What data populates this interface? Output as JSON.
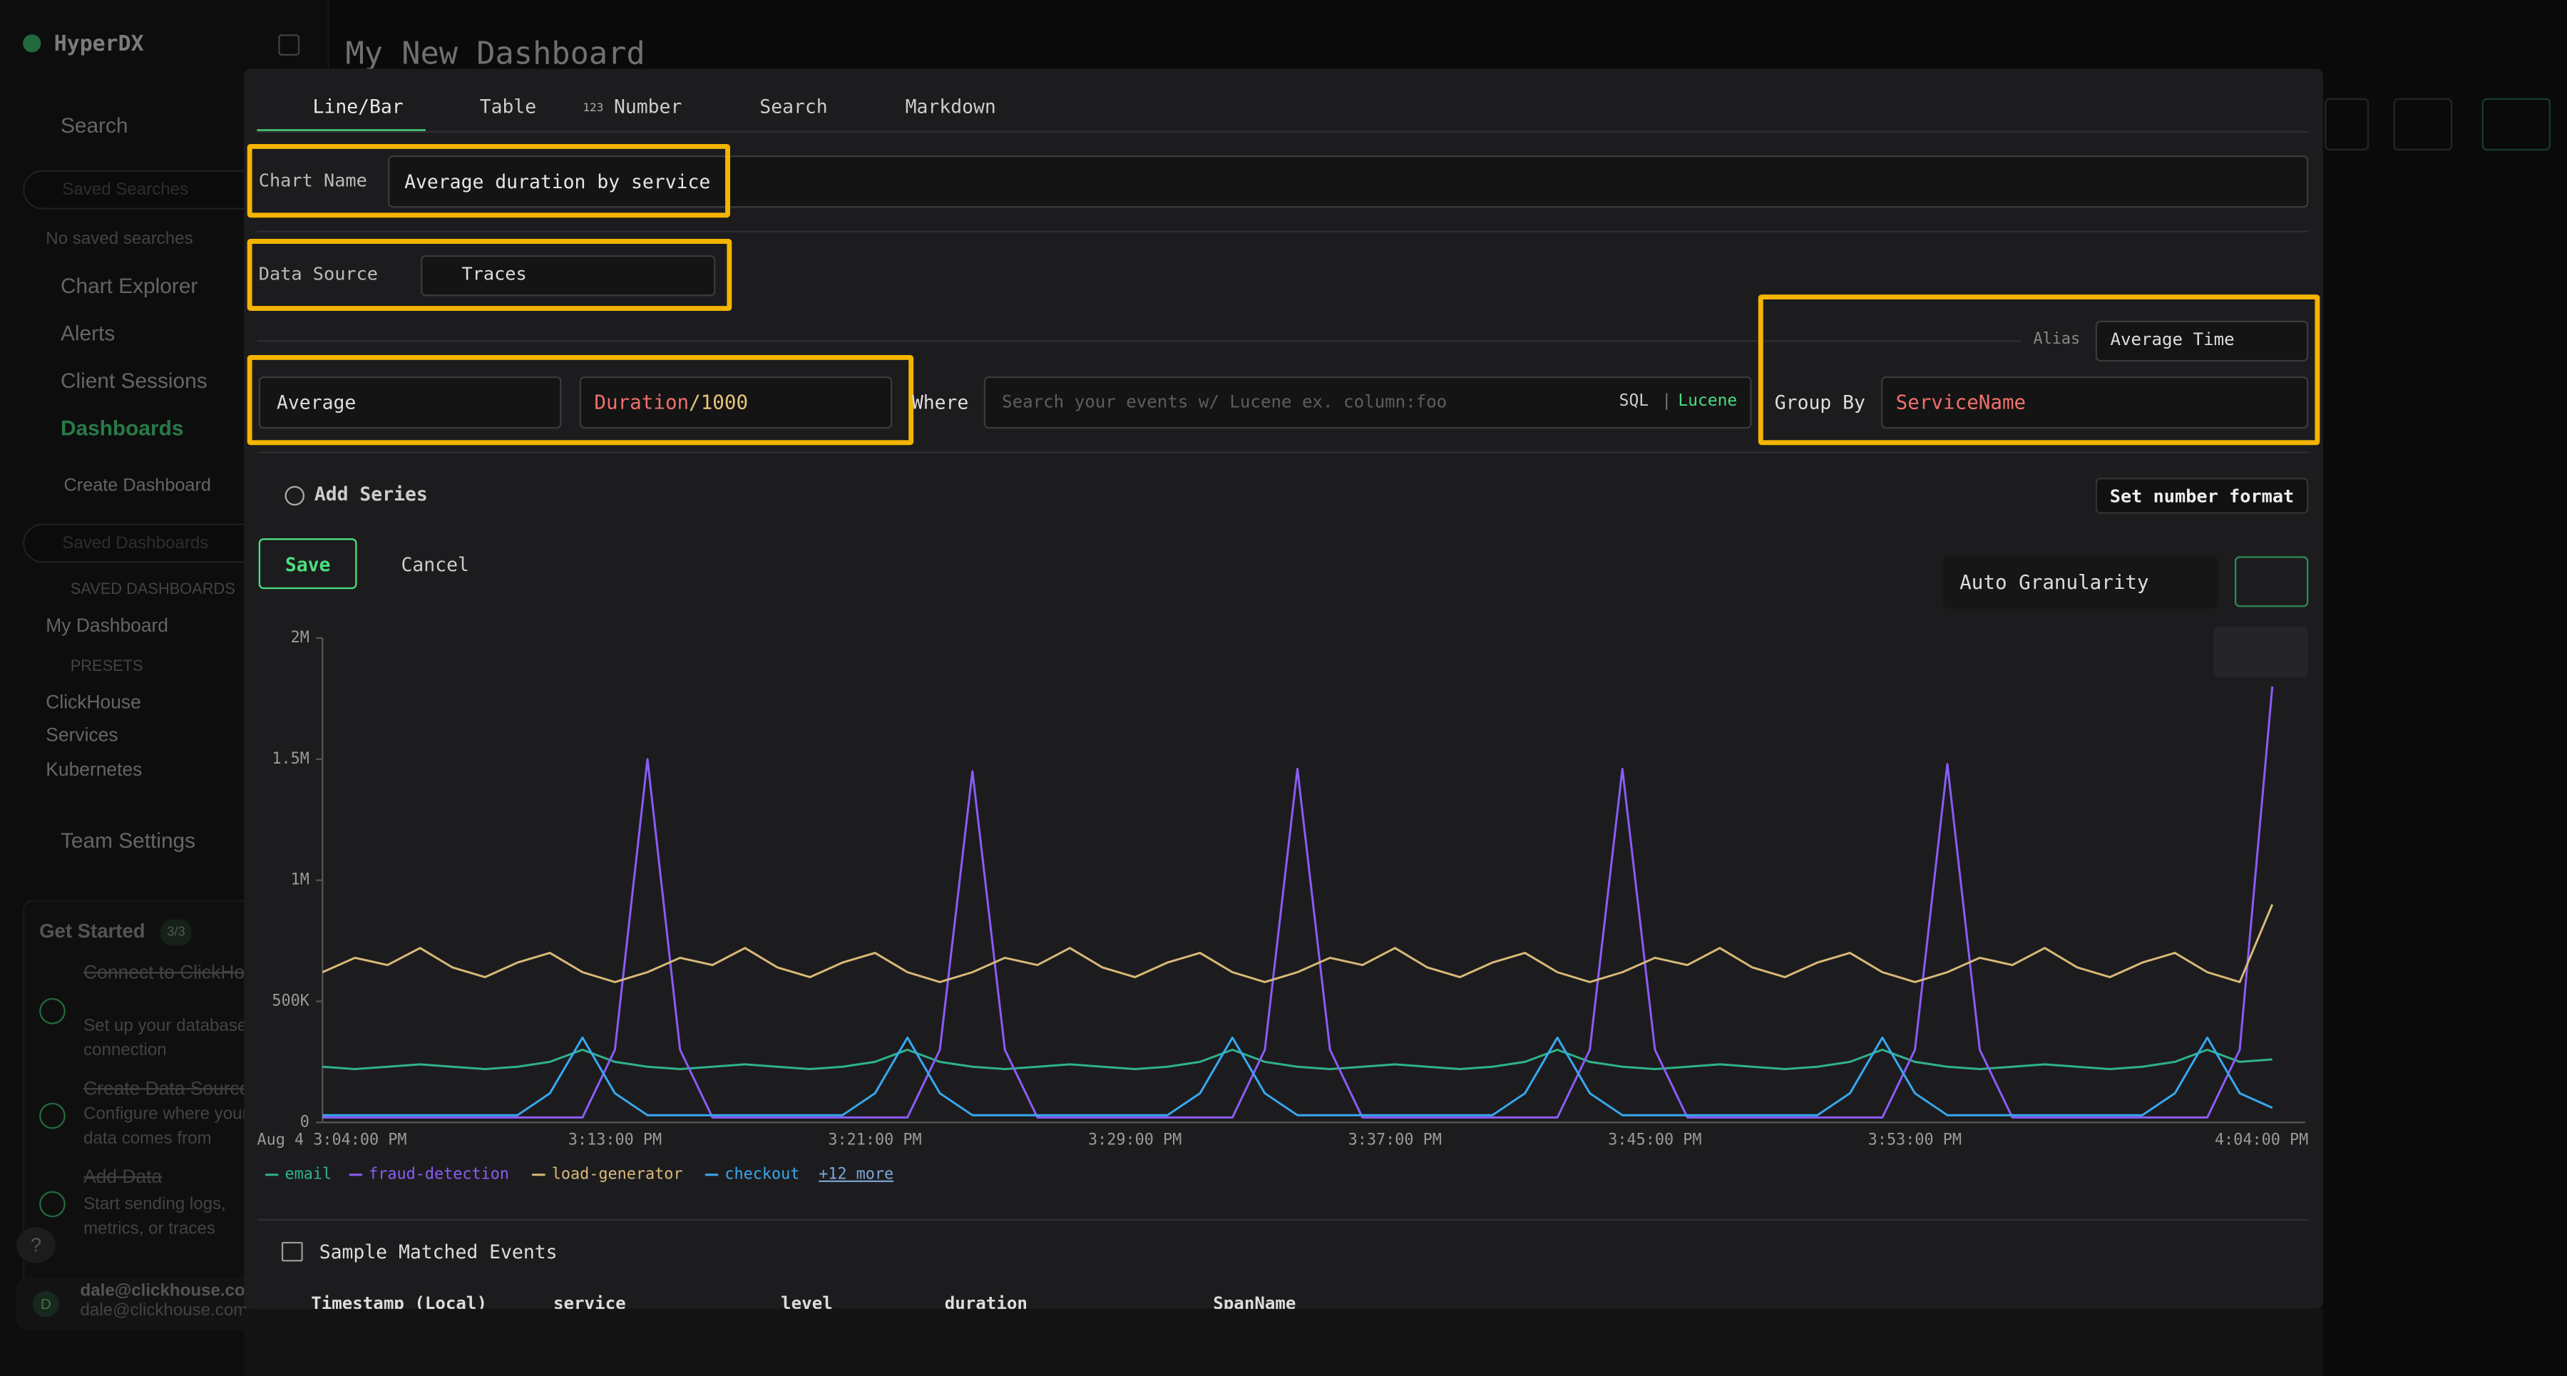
{
  "sidebar": {
    "brand": "HyperDX",
    "search": "Search",
    "saved_searches_placeholder": "Saved Searches",
    "no_saved_searches": "No saved searches",
    "chart_explorer": "Chart Explorer",
    "alerts": "Alerts",
    "client_sessions": "Client Sessions",
    "dashboards": "Dashboards",
    "create_dashboard": "Create Dashboard",
    "saved_dashboards_placeholder": "Saved Dashboards",
    "saved_dashboards_heading": "SAVED DASHBOARDS",
    "saved_dashboards": [
      "My Dashboard"
    ],
    "presets_heading": "PRESETS",
    "presets": [
      "ClickHouse",
      "Services",
      "Kubernetes"
    ],
    "team_settings": "Team Settings",
    "get_started": {
      "title": "Get Started",
      "progress": "3/3",
      "steps": [
        {
          "title": "Connect to ClickHouse",
          "desc": [
            "Set up your database",
            "connection"
          ]
        },
        {
          "title": "Create Data Source",
          "desc": [
            "Configure where your",
            "data comes from"
          ]
        },
        {
          "title": "Add Data",
          "desc": [
            "Start sending logs,",
            "metrics, or traces"
          ]
        }
      ]
    },
    "help": "?",
    "user_initial": "D",
    "user_name": "dale@clickhouse.com",
    "user_email": "dale@clickhouse.com"
  },
  "dashboard_title": "My New Dashboard",
  "editor": {
    "tabs": [
      "Line/Bar",
      "Table",
      "Number",
      "Search",
      "Markdown"
    ],
    "number_icon": "123",
    "chart_name_label": "Chart Name",
    "chart_name": "Average duration by service",
    "data_source_label": "Data Source",
    "data_source": "Traces",
    "alias_label": "Alias",
    "alias": "Average Time",
    "aggregation": "Average",
    "expression_field": "Duration",
    "expression_rest": "/1000",
    "where_label": "Where",
    "where_placeholder": "Search your events w/ Lucene ex. column:foo",
    "sql": "SQL",
    "lucene": "Lucene",
    "group_by_label": "Group By",
    "group_by": "ServiceName",
    "add_series": "Add Series",
    "number_format": "Set number format",
    "save": "Save",
    "cancel": "Cancel",
    "granularity": "Auto Granularity"
  },
  "chart_data": {
    "type": "line",
    "categories": [
      "Aug 4 3:04:00 PM",
      null,
      null,
      null,
      null,
      null,
      null,
      null,
      null,
      "3:13:00 PM",
      null,
      null,
      null,
      null,
      null,
      null,
      null,
      "3:21:00 PM",
      null,
      null,
      null,
      null,
      null,
      null,
      null,
      "3:29:00 PM",
      null,
      null,
      null,
      null,
      null,
      null,
      null,
      "3:37:00 PM",
      null,
      null,
      null,
      null,
      null,
      null,
      null,
      "3:45:00 PM",
      null,
      null,
      null,
      null,
      null,
      null,
      null,
      "3:53:00 PM",
      null,
      null,
      null,
      null,
      null,
      null,
      null,
      null,
      null,
      null,
      "4:04:00 PM"
    ],
    "series": [
      {
        "name": "email",
        "color": "#2fb38a",
        "values": [
          230000,
          220000,
          230000,
          240000,
          230000,
          220000,
          230000,
          250000,
          300000,
          250000,
          230000,
          220000,
          230000,
          240000,
          230000,
          220000,
          230000,
          250000,
          300000,
          250000,
          230000,
          220000,
          230000,
          240000,
          230000,
          220000,
          230000,
          250000,
          300000,
          250000,
          230000,
          220000,
          230000,
          240000,
          230000,
          220000,
          230000,
          250000,
          300000,
          250000,
          230000,
          220000,
          230000,
          240000,
          230000,
          220000,
          230000,
          250000,
          300000,
          250000,
          230000,
          220000,
          230000,
          240000,
          230000,
          220000,
          230000,
          250000,
          300000,
          250000,
          260000
        ]
      },
      {
        "name": "fraud-detection",
        "color": "#8b5cf6",
        "values": [
          20000,
          20000,
          20000,
          20000,
          20000,
          20000,
          20000,
          20000,
          20000,
          300000,
          1500000,
          300000,
          20000,
          20000,
          20000,
          20000,
          20000,
          20000,
          20000,
          300000,
          1450000,
          300000,
          20000,
          20000,
          20000,
          20000,
          20000,
          20000,
          20000,
          300000,
          1460000,
          300000,
          20000,
          20000,
          20000,
          20000,
          20000,
          20000,
          20000,
          300000,
          1460000,
          300000,
          20000,
          20000,
          20000,
          20000,
          20000,
          20000,
          20000,
          300000,
          1480000,
          300000,
          20000,
          20000,
          20000,
          20000,
          20000,
          20000,
          20000,
          300000,
          1800000
        ]
      },
      {
        "name": "load-generator",
        "color": "#d9b978",
        "values": [
          620000,
          680000,
          650000,
          720000,
          640000,
          600000,
          660000,
          700000,
          620000,
          580000,
          620000,
          680000,
          650000,
          720000,
          640000,
          600000,
          660000,
          700000,
          620000,
          580000,
          620000,
          680000,
          650000,
          720000,
          640000,
          600000,
          660000,
          700000,
          620000,
          580000,
          620000,
          680000,
          650000,
          720000,
          640000,
          600000,
          660000,
          700000,
          620000,
          580000,
          620000,
          680000,
          650000,
          720000,
          640000,
          600000,
          660000,
          700000,
          620000,
          580000,
          620000,
          680000,
          650000,
          720000,
          640000,
          600000,
          660000,
          700000,
          620000,
          580000,
          900000
        ]
      },
      {
        "name": "checkout",
        "color": "#38a8f0",
        "values": [
          30000,
          30000,
          30000,
          30000,
          30000,
          30000,
          30000,
          120000,
          350000,
          120000,
          30000,
          30000,
          30000,
          30000,
          30000,
          30000,
          30000,
          120000,
          350000,
          120000,
          30000,
          30000,
          30000,
          30000,
          30000,
          30000,
          30000,
          120000,
          350000,
          120000,
          30000,
          30000,
          30000,
          30000,
          30000,
          30000,
          30000,
          120000,
          350000,
          120000,
          30000,
          30000,
          30000,
          30000,
          30000,
          30000,
          30000,
          120000,
          350000,
          120000,
          30000,
          30000,
          30000,
          30000,
          30000,
          30000,
          30000,
          120000,
          350000,
          120000,
          60000
        ]
      }
    ],
    "legend_more": "+12 more",
    "ylim": [
      0,
      2000000
    ],
    "yticks": [
      {
        "value": 0,
        "label": "0"
      },
      {
        "value": 500000,
        "label": "500K"
      },
      {
        "value": 1000000,
        "label": "1M"
      },
      {
        "value": 1500000,
        "label": "1.5M"
      },
      {
        "value": 2000000,
        "label": "2M"
      }
    ],
    "grid": false
  },
  "sample_events": {
    "title": "Sample Matched Events",
    "columns": [
      "Timestamp (Local)",
      "service",
      "level",
      "duration",
      "SpanName"
    ]
  }
}
